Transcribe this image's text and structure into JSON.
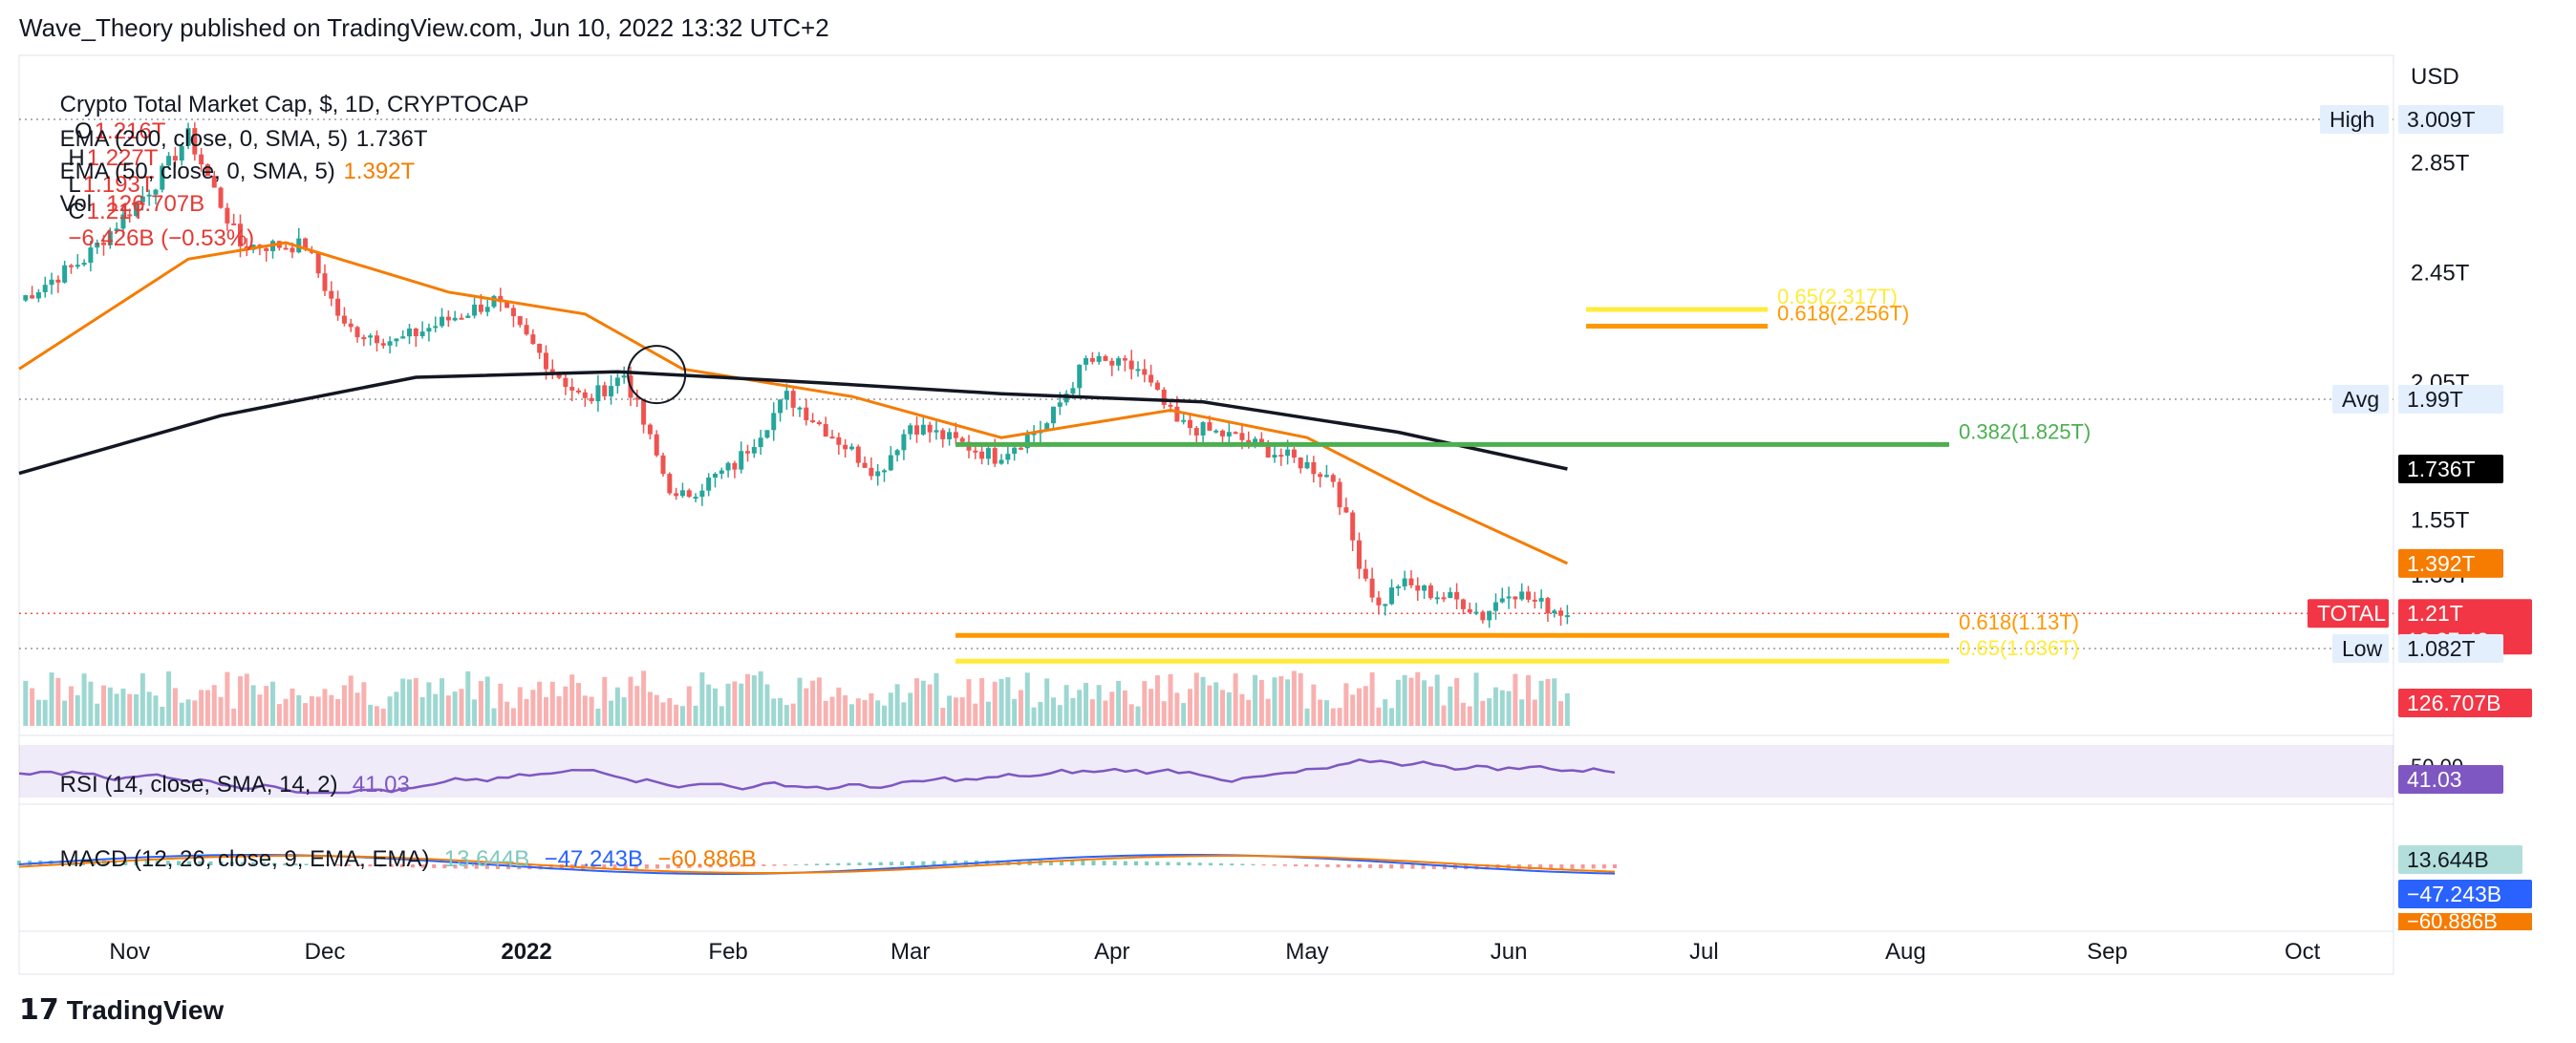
{
  "header": {
    "publisher": "Wave_Theory published on TradingView.com, Jun 10, 2022 13:32 UTC+2"
  },
  "legend": {
    "symbol": "Crypto Total Market Cap, $, 1D, CRYPTOCAP",
    "o_label": "O",
    "o_value": "1.216T",
    "h_label": "H",
    "h_value": "1.227T",
    "l_label": "L",
    "l_value": "1.193T",
    "c_label": "C",
    "c_value": "1.21T",
    "change": "−6.426B (−0.53%)",
    "ema200_label": "EMA (200, close, 0, SMA, 5)",
    "ema200_value": "1.736T",
    "ema50_label": "EMA (50, close, 0, SMA, 5)",
    "ema50_value": "1.392T",
    "vol_label": "Vol",
    "vol_value": "126.707B",
    "rsi_label": "RSI (14, close, SMA, 14, 2)",
    "rsi_value": "41.03",
    "macd_label": "MACD (12, 26, close, 9, EMA, EMA)",
    "macd_v1": "13.644B",
    "macd_v2": "−47.243B",
    "macd_v3": "−60.886B"
  },
  "colors": {
    "up": "#26a69a",
    "down": "#ef5350",
    "ema50": "#f57c00",
    "ema200": "#131722",
    "fib_green": "#4caf50",
    "fib_orange": "#ff9800",
    "fib_yellow": "#ffeb3b",
    "rsi": "#7e57c2"
  },
  "axis": {
    "currency": "USD",
    "price_ticks": [
      {
        "label": "2.85T",
        "v": 2.85
      },
      {
        "label": "2.45T",
        "v": 2.45
      },
      {
        "label": "2.05T",
        "v": 2.05
      },
      {
        "label": "1.55T",
        "v": 1.55
      },
      {
        "label": "1.35T",
        "v": 1.35
      }
    ],
    "rsi_tick": "50.00",
    "macd_hidden_tick": "−60.886B",
    "months": [
      "Nov",
      "Dec",
      "2022",
      "Feb",
      "Mar",
      "Apr",
      "May",
      "Jun",
      "Jul",
      "Aug",
      "Sep",
      "Oct"
    ]
  },
  "markers": {
    "high_label": "High",
    "high_value": "3.009T",
    "avg_label": "Avg",
    "avg_value": "1.99T",
    "low_label": "Low",
    "low_value": "1.082T",
    "ema200_badge": "1.736T",
    "ema50_badge": "1.392T",
    "total_label": "TOTAL",
    "total_value": "1.21T",
    "countdown": "12:27:43",
    "vol_badge": "126.707B",
    "rsi_badge": "41.03",
    "macd_badge1": "13.644B",
    "macd_badge2": "−47.243B"
  },
  "fib": [
    {
      "label": "0.65(2.317T)",
      "v": 2.317,
      "color": "#ffeb3b"
    },
    {
      "label": "0.618(2.256T)",
      "v": 2.256,
      "color": "#ff9800"
    },
    {
      "label": "0.382(1.825T)",
      "v": 1.825,
      "color": "#4caf50"
    },
    {
      "label": "0.618(1.13T)",
      "v": 1.13,
      "color": "#ff9800"
    },
    {
      "label": "0.65(1.036T)",
      "v": 1.036,
      "color": "#ffeb3b"
    }
  ],
  "footer": {
    "brand": "TradingView"
  },
  "chart_data": {
    "type": "candlestick",
    "title": "Crypto Total Market Cap, $, 1D, CRYPTOCAP",
    "ylabel": "USD",
    "ylim": [
      1.0,
      3.05
    ],
    "x_range": [
      "2021-10-15",
      "2022-10-15"
    ],
    "price_anchors": [
      {
        "date": "2021-10-15",
        "v": 2.35
      },
      {
        "date": "2021-10-25",
        "v": 2.5
      },
      {
        "date": "2021-11-05",
        "v": 2.78
      },
      {
        "date": "2021-11-10",
        "v": 2.95
      },
      {
        "date": "2021-11-18",
        "v": 2.55
      },
      {
        "date": "2021-11-28",
        "v": 2.55
      },
      {
        "date": "2021-12-04",
        "v": 2.25
      },
      {
        "date": "2021-12-12",
        "v": 2.2
      },
      {
        "date": "2021-12-27",
        "v": 2.35
      },
      {
        "date": "2022-01-05",
        "v": 2.1
      },
      {
        "date": "2022-01-10",
        "v": 1.98
      },
      {
        "date": "2022-01-16",
        "v": 2.08
      },
      {
        "date": "2022-01-22",
        "v": 1.72
      },
      {
        "date": "2022-01-24",
        "v": 1.62
      },
      {
        "date": "2022-02-02",
        "v": 1.75
      },
      {
        "date": "2022-02-10",
        "v": 2.0
      },
      {
        "date": "2022-02-24",
        "v": 1.72
      },
      {
        "date": "2022-03-01",
        "v": 1.9
      },
      {
        "date": "2022-03-14",
        "v": 1.78
      },
      {
        "date": "2022-03-22",
        "v": 1.9
      },
      {
        "date": "2022-03-28",
        "v": 2.13
      },
      {
        "date": "2022-04-05",
        "v": 2.1
      },
      {
        "date": "2022-04-11",
        "v": 1.9
      },
      {
        "date": "2022-04-20",
        "v": 1.85
      },
      {
        "date": "2022-05-01",
        "v": 1.75
      },
      {
        "date": "2022-05-05",
        "v": 1.7
      },
      {
        "date": "2022-05-09",
        "v": 1.4
      },
      {
        "date": "2022-05-12",
        "v": 1.23
      },
      {
        "date": "2022-05-15",
        "v": 1.32
      },
      {
        "date": "2022-05-25",
        "v": 1.25
      },
      {
        "date": "2022-05-28",
        "v": 1.2
      },
      {
        "date": "2022-06-01",
        "v": 1.3
      },
      {
        "date": "2022-06-05",
        "v": 1.25
      },
      {
        "date": "2022-06-10",
        "v": 1.21
      }
    ],
    "ema50": [
      {
        "date": "2021-10-15",
        "v": 2.1
      },
      {
        "date": "2021-11-10",
        "v": 2.5
      },
      {
        "date": "2021-11-25",
        "v": 2.56
      },
      {
        "date": "2021-12-20",
        "v": 2.38
      },
      {
        "date": "2022-01-10",
        "v": 2.3
      },
      {
        "date": "2022-01-25",
        "v": 2.1
      },
      {
        "date": "2022-02-20",
        "v": 2.0
      },
      {
        "date": "2022-03-15",
        "v": 1.85
      },
      {
        "date": "2022-04-10",
        "v": 1.95
      },
      {
        "date": "2022-05-01",
        "v": 1.85
      },
      {
        "date": "2022-05-20",
        "v": 1.62
      },
      {
        "date": "2022-06-10",
        "v": 1.392
      }
    ],
    "ema200": [
      {
        "date": "2021-10-15",
        "v": 1.72
      },
      {
        "date": "2021-11-15",
        "v": 1.93
      },
      {
        "date": "2021-12-15",
        "v": 2.07
      },
      {
        "date": "2022-01-15",
        "v": 2.09
      },
      {
        "date": "2022-02-15",
        "v": 2.05
      },
      {
        "date": "2022-03-15",
        "v": 2.01
      },
      {
        "date": "2022-04-15",
        "v": 1.98
      },
      {
        "date": "2022-05-15",
        "v": 1.87
      },
      {
        "date": "2022-06-10",
        "v": 1.736
      }
    ],
    "high": 3.009,
    "avg": 1.99,
    "low": 1.082,
    "last": 1.21
  }
}
